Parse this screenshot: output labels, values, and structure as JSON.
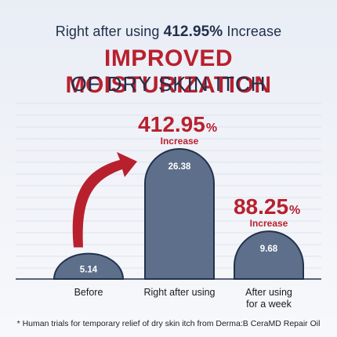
{
  "header": {
    "prefix": "Right after using ",
    "highlight": "412.95%",
    "suffix": " Increase"
  },
  "title": {
    "main": "IMPROVED MOISTURIZATION",
    "sub": "OF DRY SKIN ITCH"
  },
  "chart_data": {
    "type": "bar",
    "categories": [
      [
        "Before"
      ],
      [
        "Right after using"
      ],
      [
        "After using",
        "for a week"
      ]
    ],
    "values": [
      5.14,
      26.38,
      9.68
    ],
    "value_labels": [
      "5.14",
      "26.38",
      "9.68"
    ],
    "callouts": [
      {
        "category_index": 1,
        "number": "412.95",
        "unit": "%",
        "label": "Increase"
      },
      {
        "category_index": 2,
        "number": "88.25",
        "unit": "%",
        "label": "Increase"
      }
    ],
    "arrow": {
      "from_index": 0,
      "to_index": 1
    },
    "ylim": [
      0,
      30
    ],
    "grid": true,
    "colors": {
      "bar_fill": "#5d6f8b",
      "bar_stroke": "#22324c",
      "accent": "#b8202e",
      "text_dark": "#1f2f4a"
    }
  },
  "footnote": "* Human trials for temporary relief of dry skin itch from Derma:B CeraMD Repair Oil"
}
